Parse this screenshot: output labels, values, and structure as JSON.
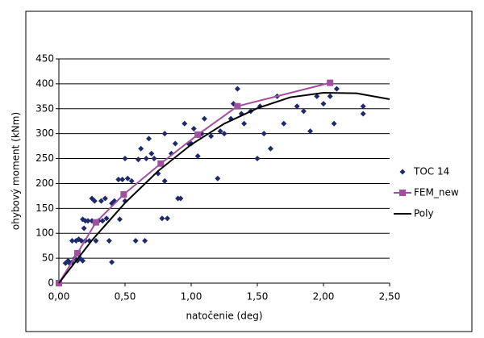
{
  "chart_data": {
    "type": "scatter",
    "y_label": "ohybový moment (kNm)",
    "x_label": "natočenie (deg)",
    "xlim": [
      0,
      2.5
    ],
    "xticks": [
      {
        "value": 0,
        "label": "0,00"
      },
      {
        "value": 0.5,
        "label": "0,50"
      },
      {
        "value": 1,
        "label": "1,00"
      },
      {
        "value": 1.5,
        "label": "1,50"
      },
      {
        "value": 2,
        "label": "2,00"
      },
      {
        "value": 2.5,
        "label": "2,50"
      }
    ],
    "ylim": [
      0,
      450
    ],
    "yticks": [
      0,
      50,
      100,
      150,
      200,
      250,
      300,
      350,
      400,
      450
    ],
    "grid": true,
    "legend": "right",
    "series": [
      {
        "name": "TOC 14",
        "type": "scatter",
        "marker": "diamond",
        "color": "#1f2a6b",
        "x": [
          0.05,
          0.07,
          0.08,
          0.1,
          0.1,
          0.12,
          0.13,
          0.14,
          0.15,
          0.16,
          0.17,
          0.18,
          0.18,
          0.19,
          0.2,
          0.2,
          0.22,
          0.23,
          0.25,
          0.25,
          0.27,
          0.28,
          0.3,
          0.32,
          0.33,
          0.35,
          0.36,
          0.38,
          0.4,
          0.4,
          0.42,
          0.45,
          0.46,
          0.48,
          0.5,
          0.5,
          0.52,
          0.55,
          0.58,
          0.6,
          0.62,
          0.65,
          0.66,
          0.68,
          0.7,
          0.72,
          0.75,
          0.78,
          0.8,
          0.8,
          0.82,
          0.85,
          0.88,
          0.9,
          0.92,
          0.95,
          0.98,
          1.0,
          1.02,
          1.05,
          1.08,
          1.1,
          1.15,
          1.2,
          1.22,
          1.25,
          1.3,
          1.32,
          1.35,
          1.38,
          1.4,
          1.45,
          1.5,
          1.52,
          1.55,
          1.6,
          1.65,
          1.7,
          1.8,
          1.85,
          1.9,
          1.95,
          2.0,
          2.05,
          2.08,
          2.1,
          2.3,
          2.3
        ],
        "values": [
          40,
          45,
          40,
          85,
          42,
          50,
          85,
          45,
          88,
          50,
          85,
          128,
          45,
          110,
          125,
          85,
          125,
          85,
          170,
          125,
          165,
          85,
          125,
          165,
          125,
          170,
          130,
          85,
          160,
          42,
          165,
          208,
          128,
          208,
          250,
          165,
          210,
          205,
          85,
          248,
          270,
          85,
          250,
          290,
          260,
          250,
          220,
          130,
          300,
          205,
          130,
          260,
          280,
          170,
          170,
          320,
          280,
          280,
          310,
          255,
          300,
          330,
          295,
          210,
          305,
          300,
          330,
          360,
          390,
          340,
          320,
          345,
          250,
          355,
          300,
          270,
          375,
          320,
          355,
          345,
          305,
          375,
          360,
          375,
          320,
          390,
          340,
          355
        ]
      },
      {
        "name": "FEM_new",
        "type": "line",
        "marker": "square",
        "color": "#a0509f",
        "x": [
          0,
          0.14,
          0.28,
          0.49,
          0.77,
          1.05,
          1.35,
          2.05
        ],
        "values": [
          0,
          60,
          122,
          178,
          240,
          298,
          355,
          402
        ]
      },
      {
        "name": "Poly",
        "type": "line",
        "marker": "none",
        "color": "#000000",
        "x": [
          0,
          0.25,
          0.5,
          0.75,
          1.0,
          1.25,
          1.5,
          1.75,
          2.0,
          2.25,
          2.5
        ],
        "values": [
          0,
          86,
          161,
          225,
          278,
          320,
          351,
          373,
          382,
          381,
          369
        ]
      }
    ]
  }
}
